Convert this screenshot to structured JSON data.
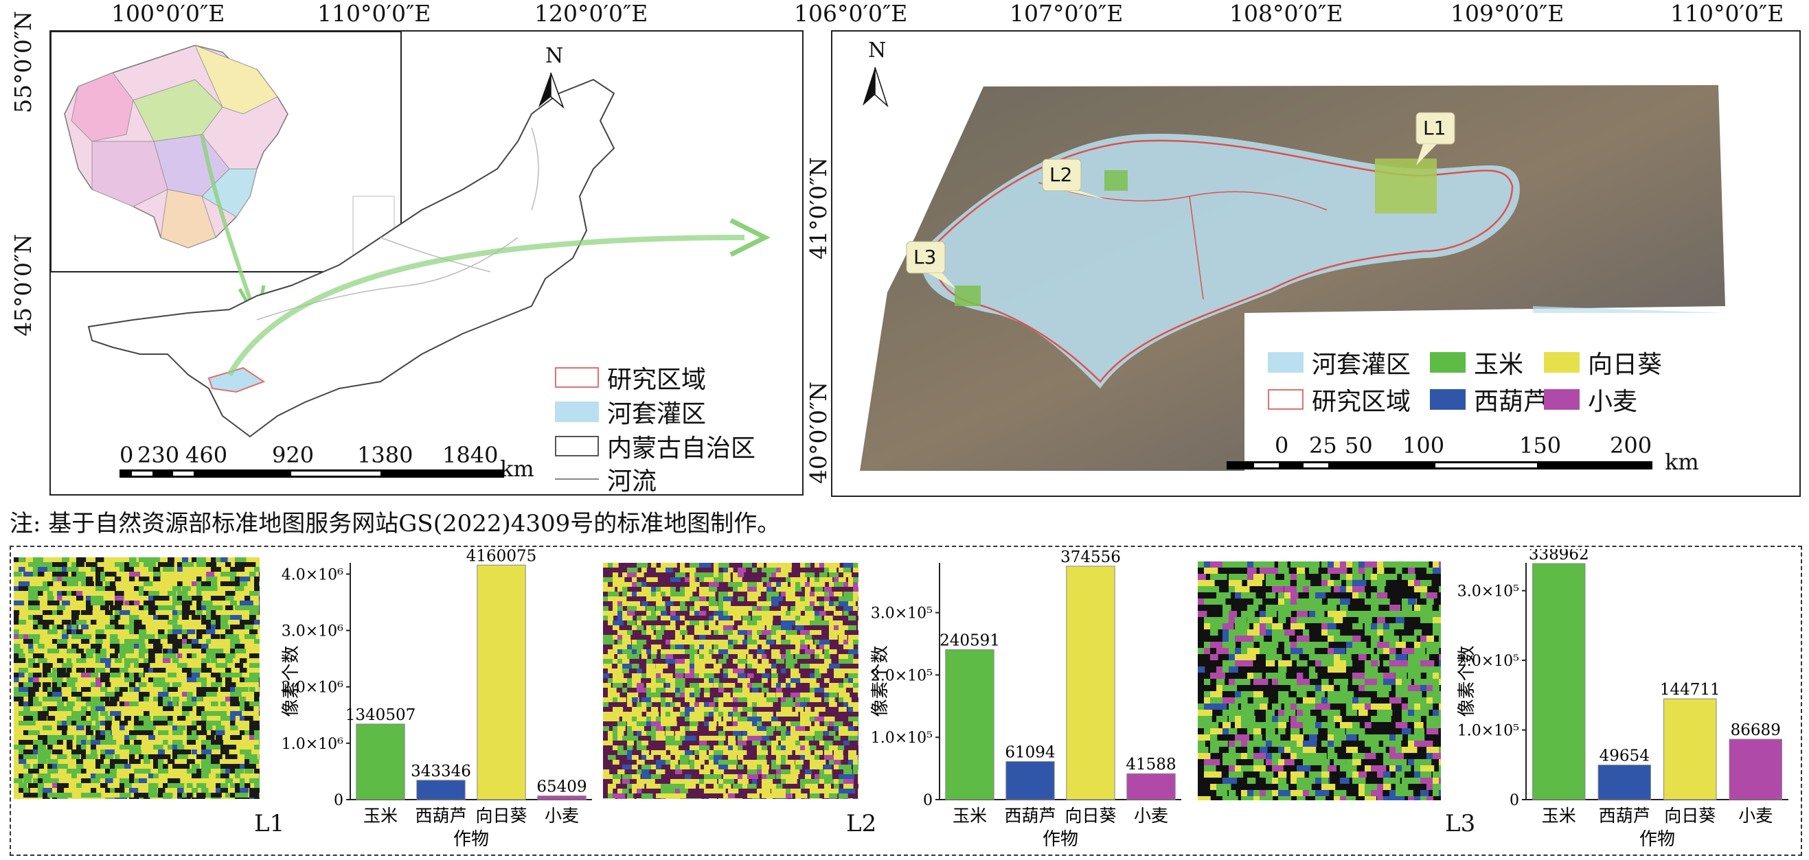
{
  "left_map": {
    "top_coords": [
      "100°0′0″E",
      "110°0′0″E",
      "120°0′0″E"
    ],
    "left_coords": [
      "55°0′0″N",
      "45°0′0″N"
    ],
    "north": "N",
    "legend": [
      {
        "label": "研究区域",
        "color": "#ffffff",
        "border": "#e07070"
      },
      {
        "label": "河套灌区",
        "color": "#b9dff0",
        "border": "#b9dff0"
      },
      {
        "label": "内蒙古自治区",
        "color": "#ffffff",
        "border": "#555555"
      },
      {
        "label": "河流",
        "color": "#ffffff",
        "border": "#888888"
      }
    ],
    "scale_labels": [
      "0",
      "230",
      "460",
      "920",
      "1380",
      "1840"
    ],
    "scale_unit": "km"
  },
  "right_map": {
    "top_coords": [
      "106°0′0″E",
      "107°0′0″E",
      "108°0′0″E",
      "109°0′0″E",
      "110°0′0″E"
    ],
    "left_coords": [
      "41°0′0″N",
      "40°0′0″N"
    ],
    "north": "N",
    "callouts": [
      "L1",
      "L2",
      "L3"
    ],
    "legend": [
      {
        "label": "河套灌区",
        "color": "#b9dff0",
        "border": "#b9dff0"
      },
      {
        "label": "玉米",
        "color": "#5dbb46",
        "border": "#5dbb46"
      },
      {
        "label": "向日葵",
        "color": "#e6e14a",
        "border": "#e6e14a"
      },
      {
        "label": "研究区域",
        "color": "#ffffff",
        "border": "#e07070"
      },
      {
        "label": "西葫芦",
        "color": "#2f56a8",
        "border": "#2f56a8"
      },
      {
        "label": "小麦",
        "color": "#b04aa8",
        "border": "#b04aa8"
      }
    ],
    "scale_labels": [
      "0",
      "25",
      "50",
      "100",
      "150",
      "200"
    ],
    "scale_unit": "km"
  },
  "note": "注: 基于自然资源部标准地图服务网站GS(2022)4309号的标准地图制作。",
  "tiles": [
    "L1",
    "L2",
    "L3"
  ],
  "colors": {
    "corn": "#5dbb46",
    "zucchini": "#2f56a8",
    "sunflower": "#e6e14a",
    "wheat": "#b04aa8"
  },
  "chart_data": [
    {
      "type": "bar",
      "categories": [
        "玉米",
        "西葫芦",
        "向日葵",
        "小麦"
      ],
      "values": [
        1340507,
        343346,
        4160075,
        65409
      ],
      "xlabel": "作物",
      "ylabel": "像素个数",
      "ylim": [
        0,
        4200000
      ],
      "ytick_values": [
        0,
        1000000,
        2000000,
        3000000,
        4000000
      ],
      "ytick_labels": [
        "0",
        "1.0×10⁶",
        "2.0×10⁶",
        "3.0×10⁶",
        "4.0×10⁶"
      ]
    },
    {
      "type": "bar",
      "categories": [
        "玉米",
        "西葫芦",
        "向日葵",
        "小麦"
      ],
      "values": [
        240591,
        61094,
        374556,
        41588
      ],
      "xlabel": "作物",
      "ylabel": "像素个数",
      "ylim": [
        0,
        380000
      ],
      "ytick_values": [
        0,
        100000,
        200000,
        300000
      ],
      "ytick_labels": [
        "0",
        "1.0×10⁵",
        "2.0×10⁵",
        "3.0×10⁵"
      ]
    },
    {
      "type": "bar",
      "categories": [
        "玉米",
        "西葫芦",
        "向日葵",
        "小麦"
      ],
      "values": [
        338962,
        49654,
        144711,
        86689
      ],
      "xlabel": "作物",
      "ylabel": "像素个数",
      "ylim": [
        0,
        340000
      ],
      "ytick_values": [
        0,
        100000,
        200000,
        300000
      ],
      "ytick_labels": [
        "0",
        "1.0×10⁵",
        "2.0×10⁵",
        "3.0×10⁵"
      ]
    }
  ]
}
